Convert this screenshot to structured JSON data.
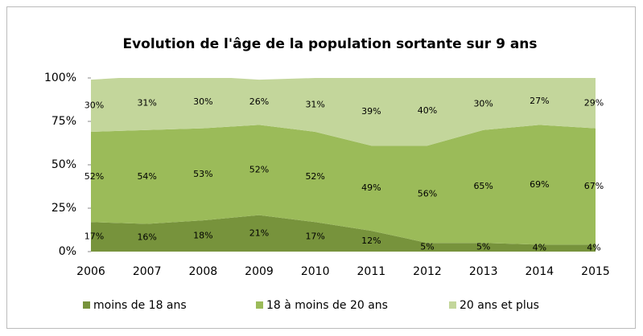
{
  "chart_data": {
    "type": "area",
    "stacked": true,
    "title": "Evolution de l'âge de la population sortante sur 9 ans",
    "categories": [
      "2006",
      "2007",
      "2008",
      "2009",
      "2010",
      "2011",
      "2012",
      "2013",
      "2014",
      "2015"
    ],
    "series": [
      {
        "name": "moins de 18 ans",
        "color": "#77933c",
        "values": [
          17,
          16,
          18,
          21,
          17,
          12,
          5,
          5,
          4,
          4
        ],
        "value_labels": [
          "17%",
          "16%",
          "18%",
          "21%",
          "17%",
          "12%",
          "5%",
          "5%",
          "4%",
          "4%"
        ]
      },
      {
        "name": "18 à moins de 20 ans",
        "color": "#9bbb59",
        "values": [
          52,
          54,
          53,
          52,
          52,
          49,
          56,
          65,
          69,
          67
        ],
        "value_labels": [
          "52%",
          "54%",
          "53%",
          "52%",
          "52%",
          "49%",
          "56%",
          "65%",
          "69%",
          "67%"
        ]
      },
      {
        "name": "20 ans et plus",
        "color": "#c3d69b",
        "values": [
          30,
          31,
          30,
          26,
          31,
          39,
          40,
          30,
          27,
          29
        ],
        "value_labels": [
          "30%",
          "31%",
          "30%",
          "26%",
          "31%",
          "39%",
          "40%",
          "30%",
          "27%",
          "29%"
        ]
      }
    ],
    "ylim": [
      0,
      100
    ],
    "yticks": [
      {
        "value": 0,
        "label": "0%"
      },
      {
        "value": 25,
        "label": "25%"
      },
      {
        "value": 50,
        "label": "50%"
      },
      {
        "value": 75,
        "label": "75%"
      },
      {
        "value": 100,
        "label": "100%"
      }
    ],
    "legend": "bottom"
  }
}
